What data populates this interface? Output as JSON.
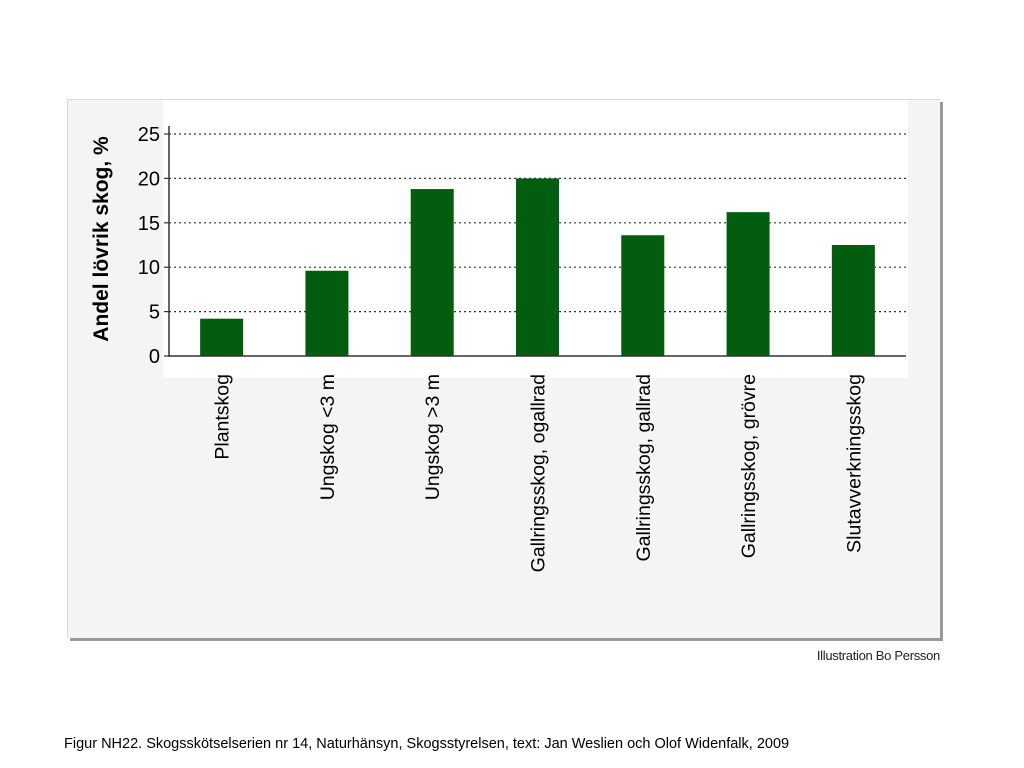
{
  "chart_data": {
    "type": "bar",
    "categories": [
      "Plantskog",
      "Ungskog <3 m",
      "Ungskog >3 m",
      "Gallringsskog, ogallrad",
      "Gallringsskog, gallrad",
      "Gallringsskog, grövre",
      "Slutavverkningsskog"
    ],
    "values": [
      4.2,
      9.6,
      18.8,
      20.0,
      13.6,
      16.2,
      12.5
    ],
    "title": "",
    "xlabel": "",
    "ylabel": "Andel lövrik skog, %",
    "ylim": [
      0,
      25
    ],
    "yticks": [
      0,
      5,
      10,
      15,
      20,
      25
    ],
    "grid": true,
    "bar_color": "#035d0f"
  },
  "credit": "Illustration Bo Persson",
  "caption": "Figur  NH22. Skogsskötselserien nr 14, Naturhänsyn, Skogsstyrelsen, text: Jan Weslien och Olof Widenfalk, 2009"
}
